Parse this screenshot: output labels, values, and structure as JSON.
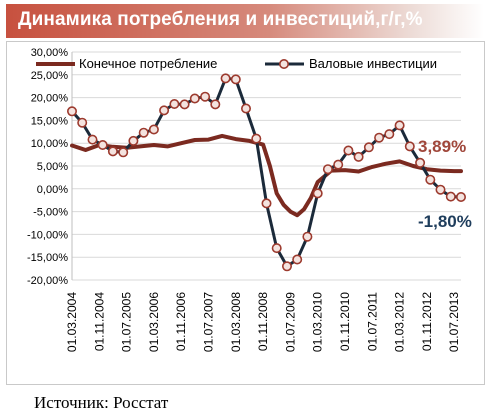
{
  "header": {
    "title": "Динамика потребления и инвестиций,г/г,%"
  },
  "footer": {
    "source": "Источник: Росстат"
  },
  "colors": {
    "consumption": "#7b2a20",
    "investment": "#1b2a3a",
    "marker_fill": "#f4e3df",
    "marker_stroke": "#9c3a2e",
    "grid": "#d9d9d9",
    "title_bg": "#c7513f"
  },
  "chart_data": {
    "type": "line",
    "title": "Динамика потребления и инвестиций,г/г,%",
    "xlabel": "",
    "ylabel": "",
    "ylim": [
      -20,
      30
    ],
    "yticks": [
      30,
      25,
      20,
      15,
      10,
      5,
      0,
      -5,
      -10,
      -15,
      -20
    ],
    "ytick_labels": [
      "30,00%",
      "25,00%",
      "20,00%",
      "15,00%",
      "10,00%",
      "5,00%",
      "0,00%",
      "-5,00%",
      "-10,00%",
      "-15,00%",
      "-20,00%"
    ],
    "x_tick_labels": [
      "01.03.2004",
      "01.11.2004",
      "01.07.2005",
      "01.03.2006",
      "01.11.2006",
      "01.07.2007",
      "01.03.2008",
      "01.11.2008",
      "01.07.2009",
      "01.03.2010",
      "01.11.2010",
      "01.07.2011",
      "01.03.2012",
      "01.11.2012",
      "01.07.2013"
    ],
    "x_tick_positions": [
      0,
      8,
      16,
      24,
      32,
      40,
      48,
      56,
      64,
      72,
      80,
      88,
      96,
      104,
      112
    ],
    "x_range": [
      0,
      114
    ],
    "grid": "horizontal",
    "legend": "top",
    "series": [
      {
        "name": "Конечное потребление",
        "style": "thick-line",
        "x": [
          0,
          4,
          8,
          12,
          16,
          20,
          24,
          28,
          32,
          36,
          40,
          44,
          48,
          52,
          56,
          58,
          60,
          62,
          64,
          66,
          68,
          70,
          72,
          76,
          80,
          84,
          88,
          92,
          96,
          100,
          104,
          108,
          112,
          114
        ],
        "values": [
          9.5,
          8.5,
          9.6,
          9.2,
          9.0,
          9.3,
          9.6,
          9.3,
          10.0,
          10.7,
          10.8,
          11.6,
          10.9,
          10.5,
          9.7,
          5.0,
          -1.0,
          -3.5,
          -5.0,
          -5.8,
          -4.5,
          -2.0,
          1.5,
          4.0,
          4.1,
          3.8,
          4.8,
          5.5,
          6.0,
          5.0,
          4.3,
          4.0,
          3.89,
          3.89
        ],
        "end_label": "3,89%"
      },
      {
        "name": "Валовые инвестиции",
        "style": "line-with-markers",
        "x": [
          0,
          3,
          6,
          9,
          12,
          15,
          18,
          21,
          24,
          27,
          30,
          33,
          36,
          39,
          42,
          45,
          48,
          51,
          54,
          57,
          60,
          63,
          66,
          69,
          72,
          75,
          78,
          81,
          84,
          87,
          90,
          93,
          96,
          99,
          102,
          105,
          108,
          111,
          114
        ],
        "values": [
          17.0,
          14.5,
          10.8,
          9.6,
          8.2,
          8.0,
          10.5,
          12.3,
          13.0,
          17.2,
          18.6,
          18.5,
          19.8,
          20.2,
          18.5,
          24.2,
          24.0,
          17.6,
          11.0,
          -3.2,
          -13.0,
          -17.0,
          -15.5,
          -10.5,
          -1.0,
          4.3,
          5.3,
          8.4,
          7.0,
          9.1,
          11.2,
          12.0,
          13.9,
          9.3,
          5.7,
          2.0,
          -0.2,
          -1.7,
          -1.8
        ],
        "end_label": "-1,80%"
      }
    ]
  }
}
